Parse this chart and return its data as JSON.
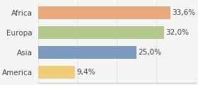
{
  "categories": [
    "America",
    "Asia",
    "Europa",
    "Africa"
  ],
  "values": [
    9.4,
    25.0,
    32.0,
    33.6
  ],
  "labels": [
    "9,4%",
    "25,0%",
    "32,0%",
    "33,6%"
  ],
  "bar_colors": [
    "#f0cc7a",
    "#7b9bbf",
    "#b5c98e",
    "#e8a97e"
  ],
  "background_color": "#f5f5f5",
  "xlim": [
    0,
    40
  ],
  "bar_height": 0.62,
  "label_fontsize": 7.5,
  "tick_fontsize": 7.5
}
